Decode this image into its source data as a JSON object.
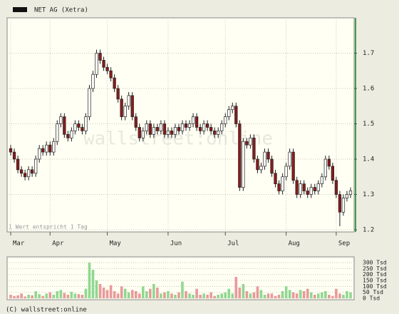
{
  "chart_data": [
    {
      "type": "candlestick",
      "title": "NET AG (Xetra)",
      "note": "1 Wert entspricht 1 Tag",
      "watermark": "wallstreet:online",
      "copyright": "(C) wallstreet:online",
      "up_color": "#ffffff",
      "down_color": "#8b1a1a",
      "grid": true,
      "xlim": [
        -1,
        96
      ],
      "xticks": [
        {
          "value": 0,
          "label": "Mar"
        },
        {
          "value": 11,
          "label": "Apr"
        },
        {
          "value": 27,
          "label": "May"
        },
        {
          "value": 44,
          "label": "Jun"
        },
        {
          "value": 60,
          "label": "Jul"
        },
        {
          "value": 77,
          "label": "Aug"
        },
        {
          "value": 91,
          "label": "Sep"
        }
      ],
      "ylim": [
        1.2,
        1.8
      ],
      "yticks": [
        1.2,
        1.3,
        1.4,
        1.5,
        1.6,
        1.7
      ],
      "open": [
        1.43,
        1.42,
        1.4,
        1.37,
        1.36,
        1.35,
        1.37,
        1.36,
        1.4,
        1.43,
        1.42,
        1.44,
        1.42,
        1.45,
        1.5,
        1.52,
        1.47,
        1.46,
        1.48,
        1.5,
        1.49,
        1.48,
        1.52,
        1.6,
        1.64,
        1.7,
        1.68,
        1.66,
        1.65,
        1.63,
        1.6,
        1.57,
        1.52,
        1.55,
        1.58,
        1.52,
        1.49,
        1.46,
        1.48,
        1.5,
        1.47,
        1.49,
        1.48,
        1.5,
        1.47,
        1.48,
        1.47,
        1.49,
        1.48,
        1.5,
        1.49,
        1.5,
        1.52,
        1.49,
        1.48,
        1.5,
        1.49,
        1.48,
        1.47,
        1.48,
        1.5,
        1.52,
        1.54,
        1.55,
        1.5,
        1.32,
        1.45,
        1.44,
        1.46,
        1.4,
        1.37,
        1.38,
        1.42,
        1.4,
        1.36,
        1.33,
        1.31,
        1.35,
        1.38,
        1.42,
        1.34,
        1.3,
        1.33,
        1.31,
        1.3,
        1.32,
        1.31,
        1.33,
        1.35,
        1.4,
        1.38,
        1.34,
        1.3,
        1.25,
        1.29,
        1.3
      ],
      "high": [
        1.44,
        1.43,
        1.41,
        1.38,
        1.37,
        1.38,
        1.38,
        1.41,
        1.44,
        1.44,
        1.45,
        1.45,
        1.46,
        1.51,
        1.53,
        1.53,
        1.48,
        1.49,
        1.51,
        1.51,
        1.5,
        1.53,
        1.61,
        1.65,
        1.71,
        1.71,
        1.69,
        1.67,
        1.66,
        1.64,
        1.61,
        1.58,
        1.56,
        1.59,
        1.59,
        1.53,
        1.5,
        1.49,
        1.51,
        1.51,
        1.5,
        1.5,
        1.51,
        1.51,
        1.49,
        1.49,
        1.5,
        1.5,
        1.51,
        1.51,
        1.51,
        1.53,
        1.53,
        1.5,
        1.51,
        1.51,
        1.5,
        1.49,
        1.49,
        1.51,
        1.53,
        1.55,
        1.56,
        1.56,
        1.51,
        1.46,
        1.46,
        1.47,
        1.47,
        1.41,
        1.39,
        1.43,
        1.43,
        1.41,
        1.37,
        1.34,
        1.36,
        1.39,
        1.43,
        1.43,
        1.35,
        1.34,
        1.34,
        1.32,
        1.33,
        1.33,
        1.34,
        1.36,
        1.41,
        1.41,
        1.39,
        1.35,
        1.31,
        1.3,
        1.31,
        1.32
      ],
      "low": [
        1.41,
        1.39,
        1.36,
        1.35,
        1.34,
        1.34,
        1.35,
        1.35,
        1.39,
        1.41,
        1.41,
        1.41,
        1.41,
        1.44,
        1.49,
        1.46,
        1.45,
        1.45,
        1.47,
        1.48,
        1.47,
        1.47,
        1.51,
        1.59,
        1.63,
        1.67,
        1.65,
        1.64,
        1.62,
        1.59,
        1.56,
        1.51,
        1.51,
        1.54,
        1.51,
        1.48,
        1.45,
        1.45,
        1.47,
        1.46,
        1.46,
        1.47,
        1.47,
        1.46,
        1.46,
        1.46,
        1.46,
        1.47,
        1.47,
        1.48,
        1.48,
        1.49,
        1.48,
        1.47,
        1.47,
        1.48,
        1.47,
        1.46,
        1.46,
        1.47,
        1.49,
        1.51,
        1.53,
        1.49,
        1.31,
        1.31,
        1.43,
        1.43,
        1.39,
        1.36,
        1.36,
        1.37,
        1.39,
        1.35,
        1.32,
        1.3,
        1.3,
        1.34,
        1.37,
        1.33,
        1.29,
        1.29,
        1.3,
        1.29,
        1.29,
        1.3,
        1.3,
        1.32,
        1.34,
        1.37,
        1.33,
        1.29,
        1.21,
        1.24,
        1.28,
        1.29
      ],
      "close": [
        1.42,
        1.4,
        1.37,
        1.36,
        1.35,
        1.37,
        1.36,
        1.4,
        1.43,
        1.42,
        1.44,
        1.42,
        1.45,
        1.5,
        1.52,
        1.47,
        1.46,
        1.48,
        1.5,
        1.49,
        1.48,
        1.52,
        1.6,
        1.64,
        1.7,
        1.68,
        1.66,
        1.65,
        1.63,
        1.6,
        1.57,
        1.52,
        1.55,
        1.58,
        1.52,
        1.49,
        1.46,
        1.48,
        1.5,
        1.47,
        1.49,
        1.48,
        1.5,
        1.47,
        1.48,
        1.47,
        1.49,
        1.48,
        1.5,
        1.49,
        1.5,
        1.52,
        1.49,
        1.48,
        1.5,
        1.49,
        1.48,
        1.47,
        1.48,
        1.5,
        1.52,
        1.54,
        1.55,
        1.5,
        1.32,
        1.45,
        1.44,
        1.46,
        1.4,
        1.37,
        1.38,
        1.42,
        1.4,
        1.36,
        1.33,
        1.31,
        1.35,
        1.38,
        1.42,
        1.34,
        1.3,
        1.33,
        1.31,
        1.3,
        1.32,
        1.31,
        1.33,
        1.35,
        1.4,
        1.38,
        1.34,
        1.3,
        1.25,
        1.29,
        1.3,
        1.31
      ]
    },
    {
      "type": "bar",
      "up_color": "#90d890",
      "down_color": "#e89a9a",
      "ylim": [
        0,
        330
      ],
      "yticks": [
        {
          "value": 0,
          "label": "0 Tsd"
        },
        {
          "value": 50,
          "label": "50 Tsd"
        },
        {
          "value": 100,
          "label": "100 Tsd"
        },
        {
          "value": 150,
          "label": "150 Tsd"
        },
        {
          "value": 200,
          "label": "200 Tsd"
        },
        {
          "value": 250,
          "label": "250 Tsd"
        },
        {
          "value": 300,
          "label": "300 Tsd"
        }
      ],
      "values": [
        30,
        20,
        25,
        40,
        15,
        30,
        25,
        60,
        35,
        20,
        40,
        50,
        30,
        60,
        70,
        45,
        30,
        55,
        40,
        35,
        30,
        80,
        300,
        240,
        150,
        120,
        90,
        70,
        110,
        60,
        40,
        100,
        80,
        50,
        70,
        60,
        40,
        100,
        60,
        80,
        120,
        90,
        40,
        50,
        60,
        40,
        30,
        50,
        140,
        60,
        40,
        30,
        80,
        30,
        40,
        30,
        50,
        20,
        30,
        40,
        50,
        80,
        40,
        180,
        90,
        120,
        60,
        40,
        50,
        100,
        70,
        30,
        40,
        40,
        20,
        30,
        60,
        100,
        70,
        50,
        40,
        70,
        60,
        80,
        50,
        30,
        40,
        50,
        60,
        30,
        20,
        80,
        40,
        30,
        60,
        50
      ]
    }
  ]
}
